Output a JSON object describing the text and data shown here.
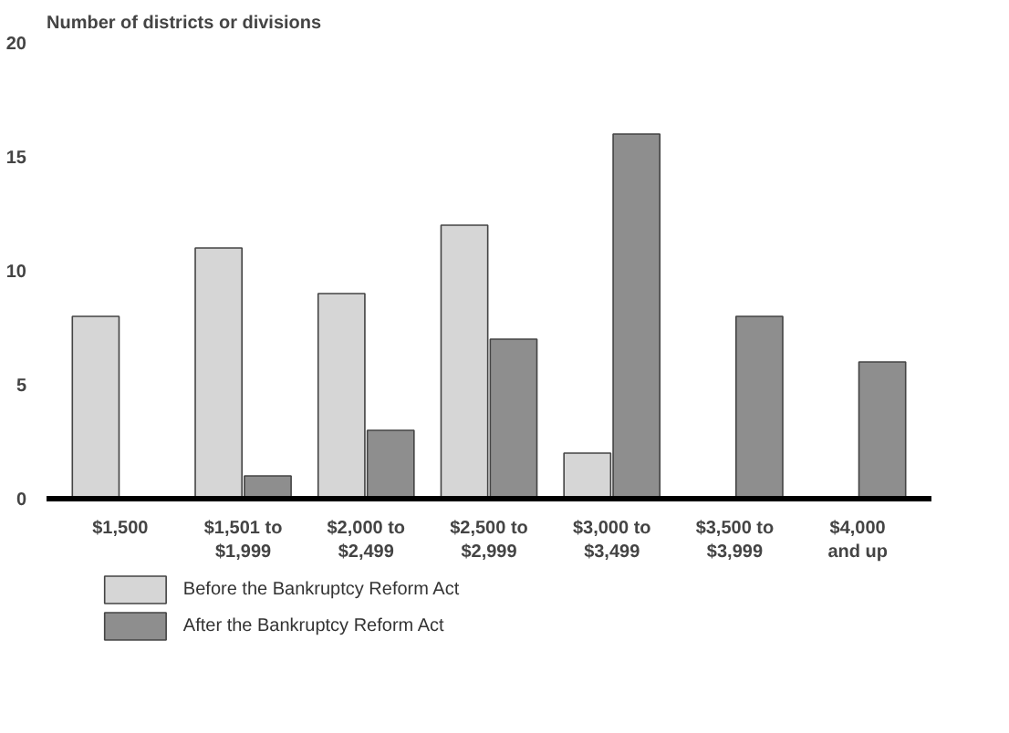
{
  "chart_data": {
    "type": "bar",
    "ylabel": "Number of districts or divisions",
    "categories": [
      "$1,500",
      "$1,501 to\n$1,999",
      "$2,000 to\n$2,499",
      "$2,500 to\n$2,999",
      "$3,000 to\n$3,499",
      "$3,500 to\n$3,999",
      "$4,000\nand up"
    ],
    "series": [
      {
        "name": "Before the Bankruptcy Reform Act",
        "color": "#d6d6d6",
        "values": [
          8,
          11,
          9,
          12,
          2,
          null,
          null
        ]
      },
      {
        "name": "After the Bankruptcy Reform Act",
        "color": "#8e8e8e",
        "values": [
          null,
          1,
          3,
          7,
          16,
          8,
          6
        ]
      }
    ],
    "ylim": [
      0,
      20
    ],
    "yticks": [
      0,
      5,
      10,
      15,
      20
    ],
    "grid": false,
    "legend": "bottom"
  }
}
